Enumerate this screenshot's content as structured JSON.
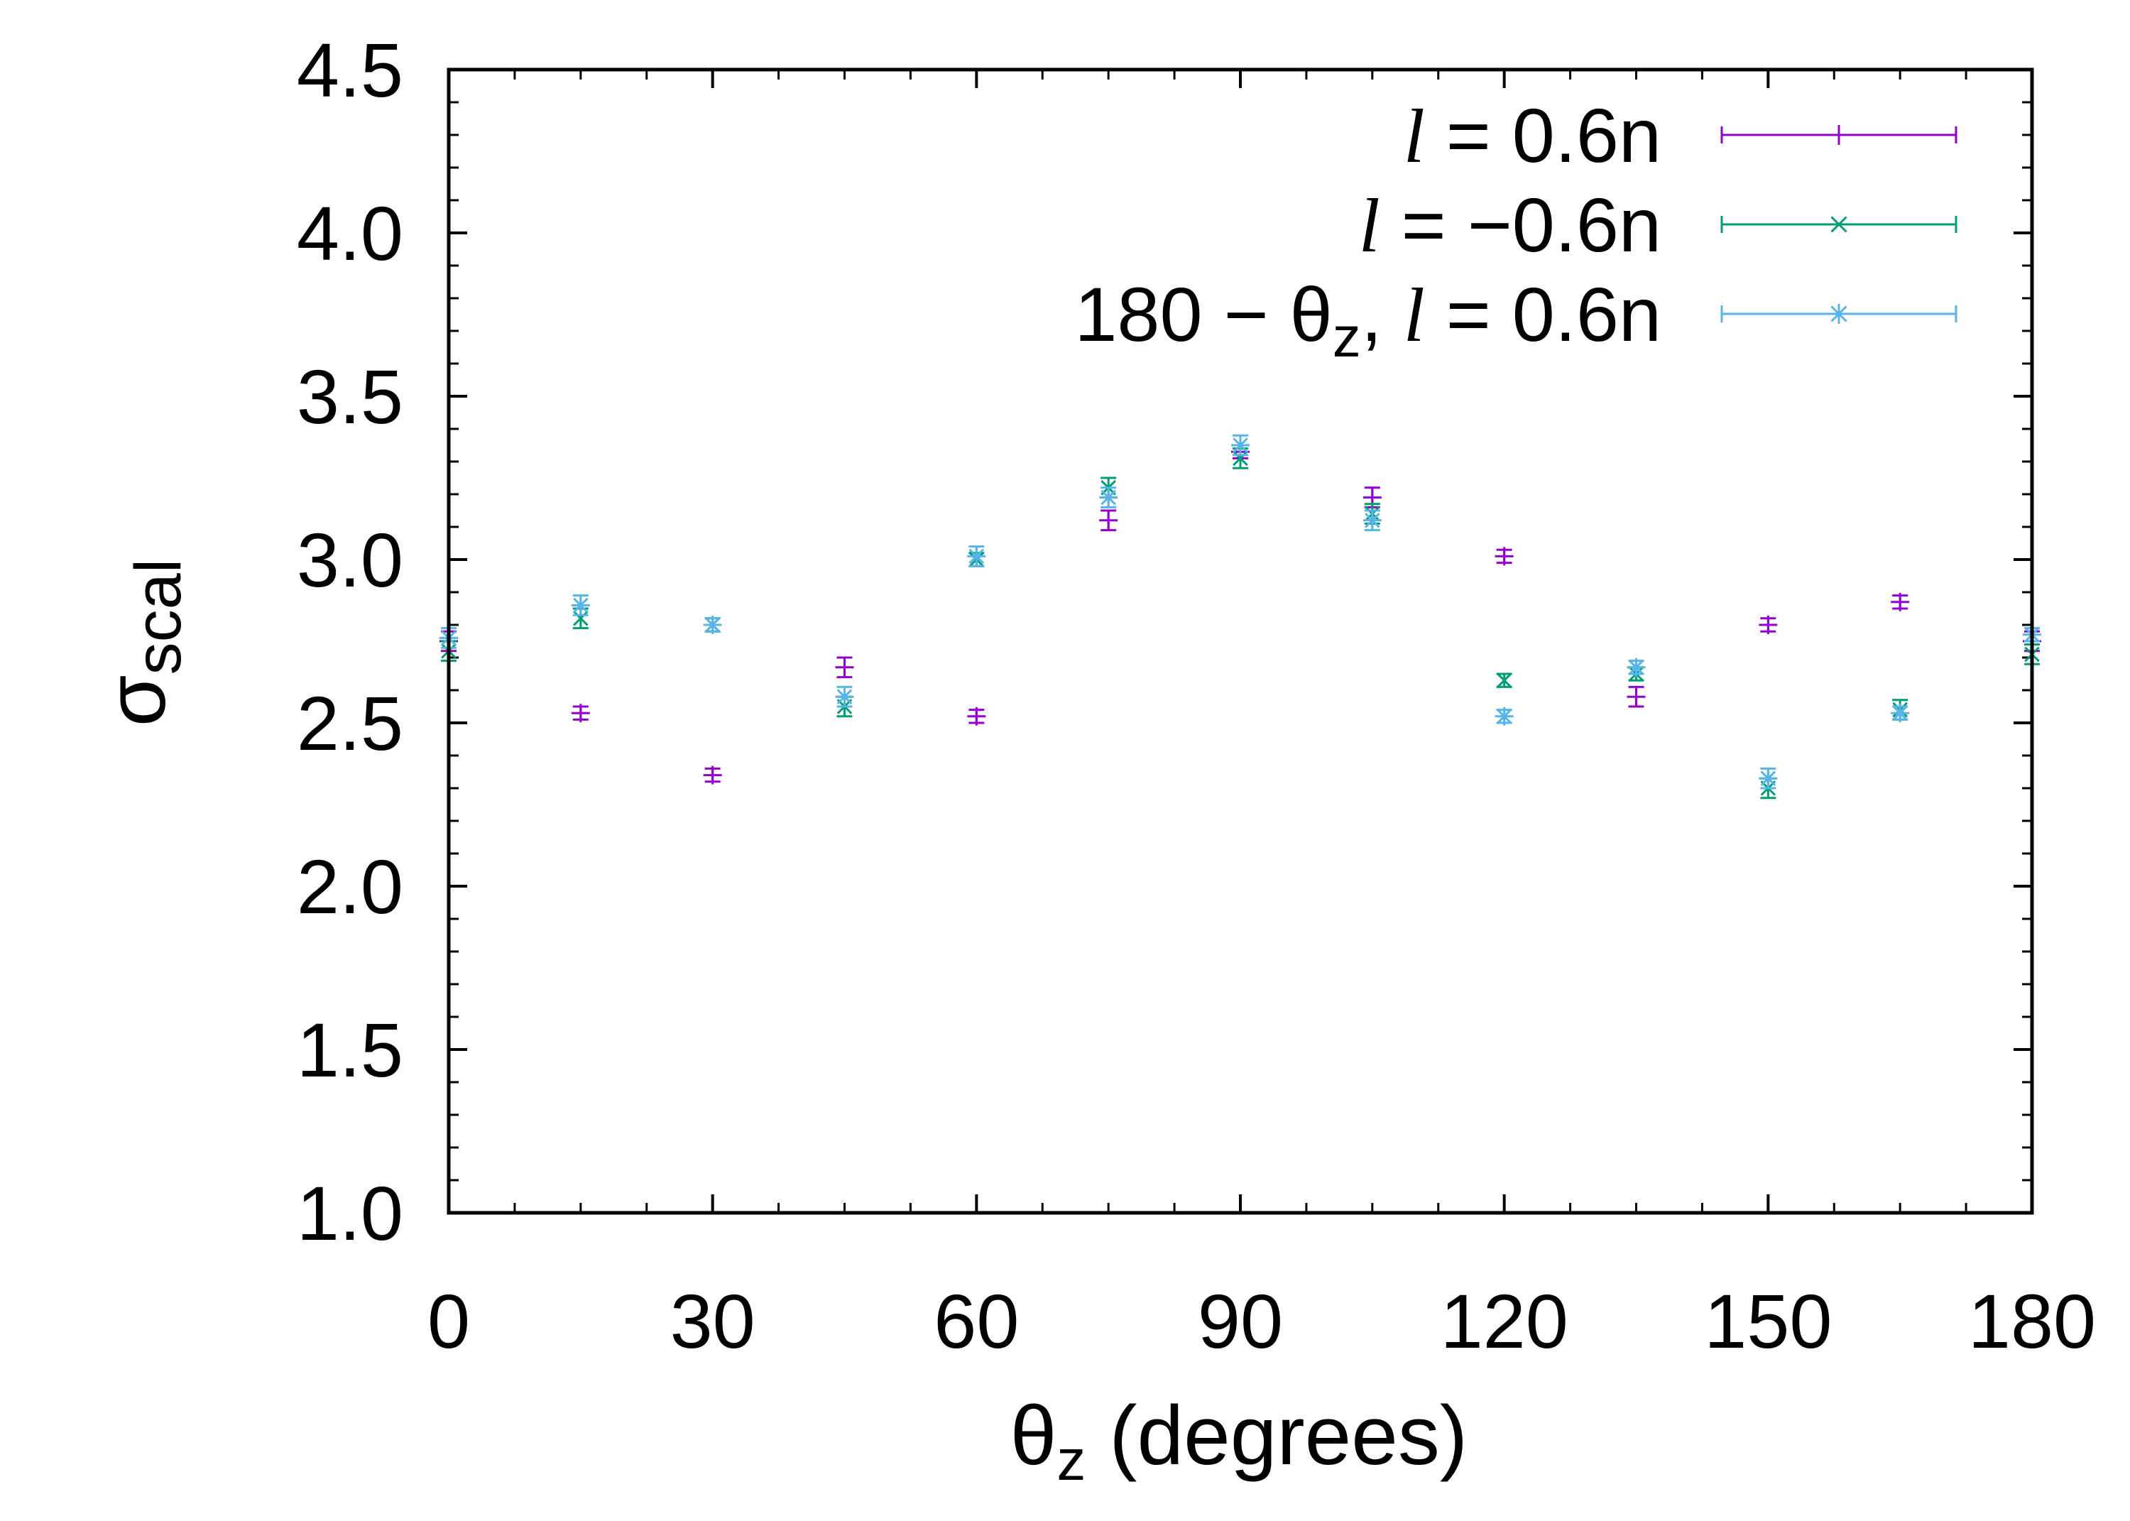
{
  "chart_data": {
    "type": "scatter",
    "xlabel": {
      "main": "θ",
      "sub": "z",
      "rest": " (degrees)"
    },
    "ylabel": {
      "main": "σ",
      "sub": "scal"
    },
    "xlim": [
      0,
      180
    ],
    "ylim": [
      1.0,
      4.5
    ],
    "xticks": [
      0,
      30,
      60,
      90,
      120,
      150,
      180
    ],
    "xtick_labels": [
      "0",
      "30",
      "60",
      "90",
      "120",
      "150",
      "180"
    ],
    "yticks": [
      1.0,
      1.5,
      2.0,
      2.5,
      3.0,
      3.5,
      4.0,
      4.5
    ],
    "ytick_labels": [
      "1.0",
      "1.5",
      "2.0",
      "2.5",
      "3.0",
      "3.5",
      "4.0",
      "4.5"
    ],
    "grid": false,
    "legend_position": "top-right",
    "series": [
      {
        "name": "l = 0.6n",
        "legend": {
          "italic": "l",
          "text": " = 0.6n"
        },
        "marker": "plus",
        "color": "#9400d3",
        "x": [
          0,
          15,
          30,
          45,
          60,
          75,
          90,
          105,
          120,
          135,
          150,
          165,
          180
        ],
        "y": [
          2.75,
          2.53,
          2.34,
          2.67,
          2.52,
          3.12,
          3.33,
          3.19,
          3.01,
          2.58,
          2.8,
          2.87,
          2.75
        ],
        "err": [
          0.03,
          0.02,
          0.02,
          0.03,
          0.02,
          0.03,
          0.02,
          0.03,
          0.02,
          0.03,
          0.02,
          0.02,
          0.03
        ]
      },
      {
        "name": "l = −0.6n",
        "legend": {
          "italic": "l",
          "text": " = −0.6n"
        },
        "marker": "cross",
        "color": "#009e73",
        "x": [
          0,
          15,
          30,
          45,
          60,
          75,
          90,
          105,
          120,
          135,
          150,
          165,
          180
        ],
        "y": [
          2.72,
          2.82,
          2.8,
          2.55,
          3.0,
          3.22,
          3.31,
          3.14,
          2.63,
          2.65,
          2.3,
          2.54,
          2.71
        ],
        "err": [
          0.03,
          0.03,
          0.02,
          0.03,
          0.02,
          0.03,
          0.03,
          0.03,
          0.02,
          0.02,
          0.03,
          0.03,
          0.03
        ]
      },
      {
        "name": "180 − θz, l = 0.6n",
        "legend": {
          "pre": "180 − θ",
          "sub": "z",
          "mid": ", ",
          "italic": "l",
          "text": " = 0.6n"
        },
        "marker": "star",
        "color": "#56b4e9",
        "x": [
          0,
          15,
          30,
          45,
          60,
          75,
          90,
          105,
          120,
          135,
          150,
          165,
          180
        ],
        "y": [
          2.76,
          2.86,
          2.8,
          2.58,
          3.01,
          3.19,
          3.35,
          3.12,
          2.52,
          2.67,
          2.33,
          2.53,
          2.77
        ],
        "err": [
          0.03,
          0.03,
          0.02,
          0.03,
          0.03,
          0.03,
          0.03,
          0.03,
          0.02,
          0.02,
          0.03,
          0.02,
          0.02
        ]
      }
    ]
  }
}
